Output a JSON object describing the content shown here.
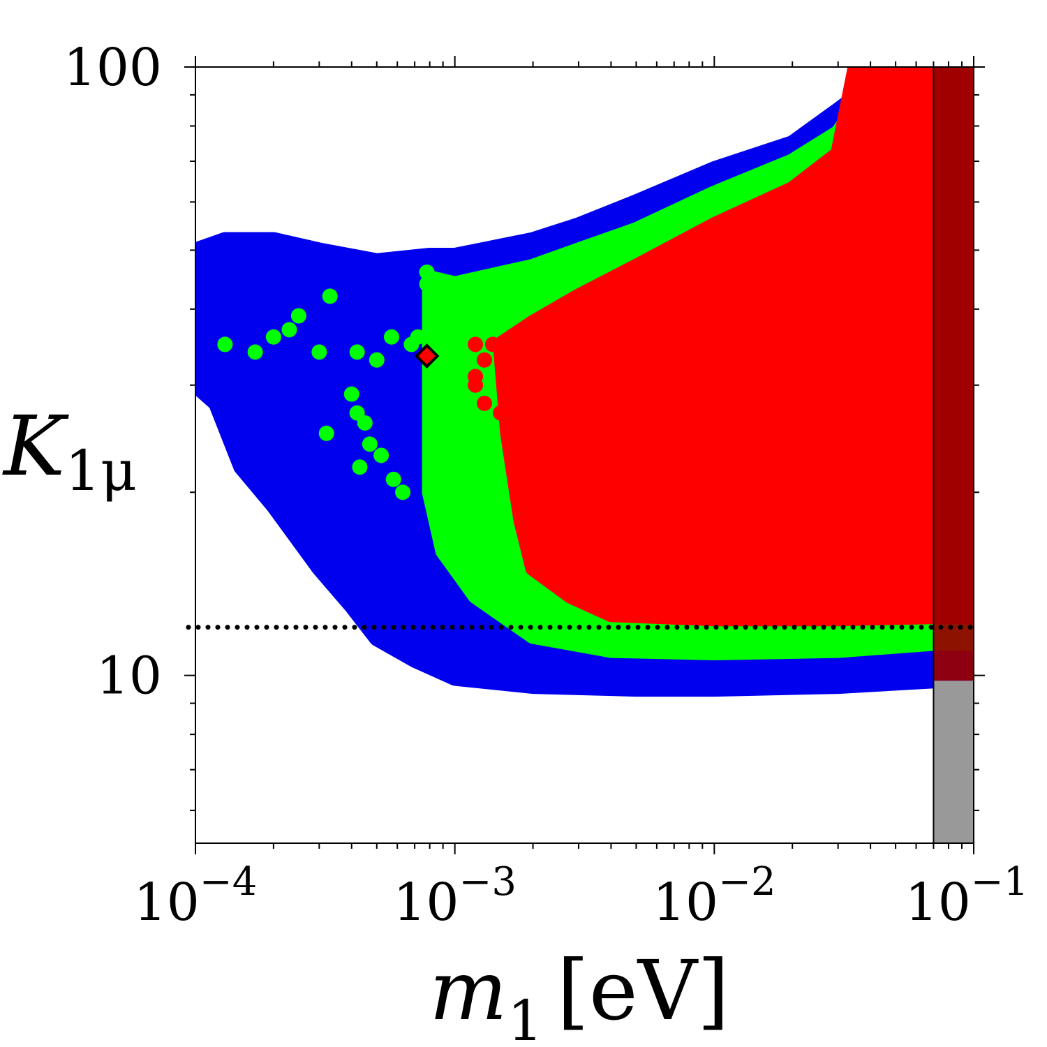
{
  "chart_data": {
    "type": "scatter",
    "title": "",
    "xlabel_symbol": "m",
    "xlabel_sub": "1",
    "xlabel_unit": "[eV]",
    "ylabel_symbol": "K",
    "ylabel_sub": "1μ",
    "x_scale": "log",
    "y_scale": "log",
    "xlim": [
      0.0001,
      0.1
    ],
    "ylim": [
      5.3,
      100
    ],
    "x_ticks": [
      {
        "value": 0.0001,
        "base": "10",
        "exp": "−4"
      },
      {
        "value": 0.001,
        "base": "10",
        "exp": "−3"
      },
      {
        "value": 0.01,
        "base": "10",
        "exp": "−2"
      },
      {
        "value": 0.1,
        "base": "10",
        "exp": "−1"
      }
    ],
    "y_ticks": [
      {
        "value": 10,
        "label": "10"
      },
      {
        "value": 100,
        "label": "100"
      }
    ],
    "grid": false,
    "legend": "none",
    "series": [
      {
        "color": "#0000ee",
        "marker": "circle",
        "region": "lower envelope K≈9.5–10.5 for m1 in 1e-3–0.07 eV, extends to K≈50 at 1e-4 eV"
      },
      {
        "color": "#00ff00",
        "marker": "circle",
        "region": "lower envelope K≈11 for m1 in 2e-3–0.07 eV"
      },
      {
        "color": "#ff0000",
        "marker": "circle",
        "region": "lower envelope K≈12.5 for m1 in 3e-3–0.07 eV"
      }
    ],
    "boundaries": {
      "blue": {
        "upper": [
          [
            0.0001,
            50
          ],
          [
            0.00013,
            52
          ],
          [
            0.0002,
            52
          ],
          [
            0.0003,
            50
          ],
          [
            0.0005,
            48
          ],
          [
            0.0008,
            49
          ],
          [
            0.001,
            49
          ],
          [
            0.002,
            52
          ],
          [
            0.003,
            55
          ],
          [
            0.005,
            60
          ],
          [
            0.01,
            68
          ],
          [
            0.02,
            75
          ],
          [
            0.03,
            85
          ],
          [
            0.05,
            100
          ]
        ],
        "lower": [
          [
            0.0001,
            30
          ],
          [
            0.00012,
            28
          ],
          [
            0.00015,
            22
          ],
          [
            0.0002,
            19
          ],
          [
            0.0003,
            15
          ],
          [
            0.0004,
            13
          ],
          [
            0.0005,
            11.5
          ],
          [
            0.0007,
            10.6
          ],
          [
            0.001,
            9.9
          ],
          [
            0.002,
            9.6
          ],
          [
            0.005,
            9.5
          ],
          [
            0.01,
            9.5
          ],
          [
            0.03,
            9.6
          ],
          [
            0.07,
            9.8
          ]
        ]
      },
      "green": {
        "upper": [
          [
            0.0008,
            45
          ],
          [
            0.001,
            44
          ],
          [
            0.002,
            47
          ],
          [
            0.003,
            50
          ],
          [
            0.005,
            54
          ],
          [
            0.01,
            62
          ],
          [
            0.02,
            70
          ],
          [
            0.03,
            78
          ],
          [
            0.045,
            100
          ]
        ],
        "lower": [
          [
            0.0008,
            30
          ],
          [
            0.0008,
            20
          ],
          [
            0.0009,
            16
          ],
          [
            0.0012,
            13.5
          ],
          [
            0.002,
            11.6
          ],
          [
            0.004,
            11.0
          ],
          [
            0.01,
            10.9
          ],
          [
            0.03,
            11.0
          ],
          [
            0.07,
            11.3
          ]
        ]
      },
      "red": {
        "upper": [
          [
            0.0015,
            35
          ],
          [
            0.002,
            38
          ],
          [
            0.003,
            42
          ],
          [
            0.005,
            47
          ],
          [
            0.01,
            55
          ],
          [
            0.02,
            63
          ],
          [
            0.03,
            72
          ],
          [
            0.035,
            100
          ]
        ],
        "lower": [
          [
            0.0015,
            35
          ],
          [
            0.0016,
            25
          ],
          [
            0.0018,
            18
          ],
          [
            0.002,
            15
          ],
          [
            0.0028,
            13.5
          ],
          [
            0.004,
            12.6
          ],
          [
            0.01,
            12.4
          ],
          [
            0.03,
            12.4
          ],
          [
            0.07,
            12.5
          ]
        ]
      }
    },
    "green_scatter": [
      [
        0.00013,
        35
      ],
      [
        0.00017,
        34
      ],
      [
        0.0002,
        36
      ],
      [
        0.00023,
        37
      ],
      [
        0.00025,
        39
      ],
      [
        0.0003,
        34
      ],
      [
        0.00033,
        42
      ],
      [
        0.00042,
        34
      ],
      [
        0.0005,
        33
      ],
      [
        0.00057,
        36
      ],
      [
        0.0004,
        29
      ],
      [
        0.00042,
        27
      ],
      [
        0.00045,
        26
      ],
      [
        0.00032,
        25
      ],
      [
        0.00047,
        24
      ],
      [
        0.00043,
        22
      ],
      [
        0.00058,
        21
      ],
      [
        0.00052,
        23
      ],
      [
        0.00063,
        20
      ],
      [
        0.00068,
        35
      ],
      [
        0.00072,
        36
      ],
      [
        0.00078,
        46
      ],
      [
        0.00078,
        44
      ]
    ],
    "red_scatter": [
      [
        0.0012,
        35
      ],
      [
        0.0012,
        31
      ],
      [
        0.0013,
        33
      ],
      [
        0.0014,
        35
      ],
      [
        0.0012,
        30
      ],
      [
        0.0013,
        28
      ],
      [
        0.0015,
        27
      ]
    ],
    "annotations": [
      {
        "type": "hline",
        "y": 12,
        "style": "dotted",
        "color": "#000000"
      },
      {
        "type": "marker",
        "shape": "diamond",
        "x": 0.00078,
        "y": 33.5,
        "fill": "#ff0000",
        "stroke": "#000000"
      },
      {
        "type": "band",
        "x_range": [
          0.07,
          0.1
        ],
        "color_over_data": "#990000",
        "color_below_data": "#999999"
      }
    ]
  }
}
